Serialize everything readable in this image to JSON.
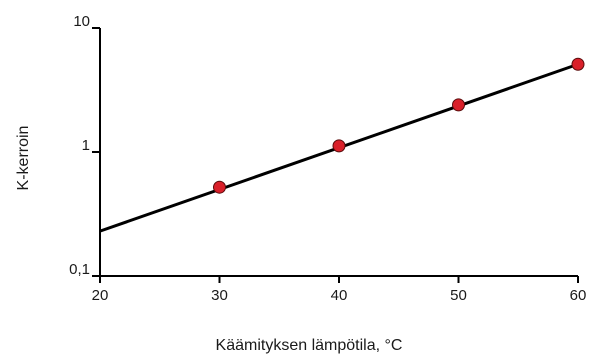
{
  "chart_data": {
    "type": "line",
    "title": "",
    "xlabel": "Käämityksen lämpötila, °C",
    "ylabel": "K-kerroin",
    "x_ticks": [
      "20",
      "30",
      "40",
      "50",
      "60"
    ],
    "y_ticks": [
      {
        "value": 0.1,
        "label": "0,1"
      },
      {
        "value": 1,
        "label": "1"
      },
      {
        "value": 10,
        "label": "10"
      }
    ],
    "xlim": [
      20,
      60
    ],
    "ylim": [
      0.1,
      10
    ],
    "y_scale": "log",
    "grid": false,
    "line": {
      "x": [
        20,
        60
      ],
      "y": [
        0.23,
        5.1
      ]
    },
    "points": [
      {
        "x": 30,
        "y": 0.52
      },
      {
        "x": 40,
        "y": 1.12
      },
      {
        "x": 50,
        "y": 2.4
      },
      {
        "x": 60,
        "y": 5.1
      }
    ],
    "colors": {
      "line": "#000000",
      "marker_fill": "#d9202a",
      "marker_stroke": "#5a0c0c",
      "axis": "#000000"
    }
  }
}
